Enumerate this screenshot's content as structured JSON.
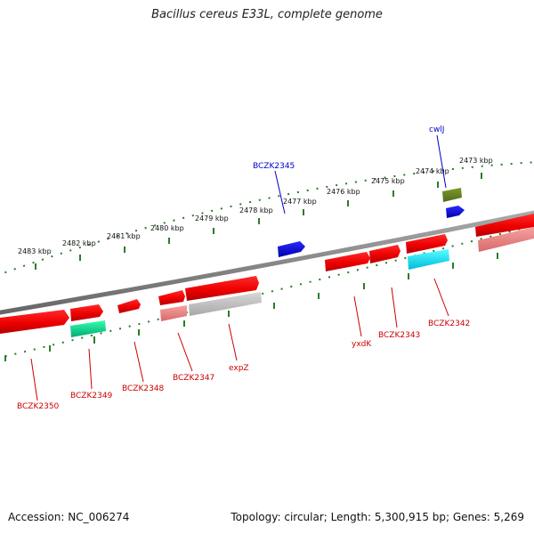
{
  "title": "Bacillus cereus E33L, complete genome",
  "footer": {
    "accession": "Accession: NC_006274",
    "summary": "Topology: circular; Length: 5,300,915 bp; Genes: 5,269"
  },
  "ticks": [
    "2483 kbp",
    "2482 kbp",
    "2481 kbp",
    "2480 kbp",
    "2479 kbp",
    "2478 kbp",
    "2477 kbp",
    "2476 kbp",
    "2475 kbp",
    "2474 kbp",
    "2473 kbp"
  ],
  "labels": {
    "top": [
      "cwlJ",
      "BCZK2345"
    ],
    "bottom": [
      "BCZK2350",
      "BCZK2349",
      "BCZK2348",
      "BCZK2347",
      "expZ",
      "yxdK",
      "BCZK2343",
      "BCZK2342"
    ]
  },
  "colors": {
    "gene_forward": "#ff0000",
    "gene_reverse": "#ff0000",
    "label_red": "#cc0000",
    "label_blue": "#0000cc",
    "blue_feature": "#0000dd",
    "olive_feature": "#6b8e23",
    "green_feature": "#00cc88",
    "cyan_feature": "#00e5ff",
    "pink_feature": "#f08080",
    "grey_feature": "#c0c0c0",
    "backbone": "#888888",
    "ruler": "#2a7d2a"
  }
}
